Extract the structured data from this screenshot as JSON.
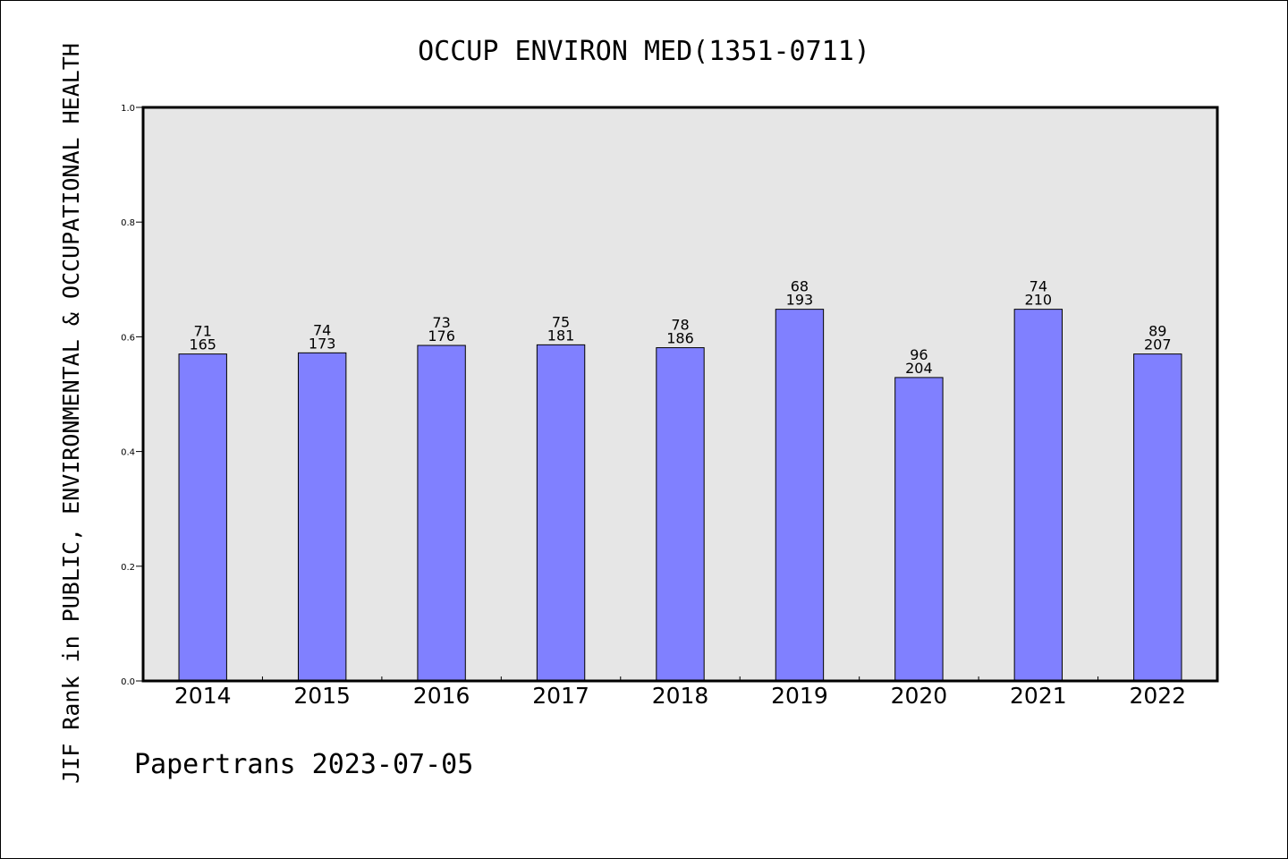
{
  "chart_data": {
    "type": "bar",
    "title": "OCCUP ENVIRON MED(1351-0711)",
    "xlabel": "",
    "ylabel": "JIF Rank in PUBLIC, ENVIRONMENTAL & OCCUPATIONAL HEALTH",
    "ylim": [
      0.0,
      1.0
    ],
    "yticks": [
      "0.0",
      "0.2",
      "0.4",
      "0.6",
      "0.8",
      "1.0"
    ],
    "categories": [
      "2014",
      "2015",
      "2016",
      "2017",
      "2018",
      "2019",
      "2020",
      "2021",
      "2022"
    ],
    "values": [
      0.57,
      0.572,
      0.585,
      0.586,
      0.581,
      0.648,
      0.529,
      0.648,
      0.57
    ],
    "rank": [
      "71",
      "74",
      "73",
      "75",
      "78",
      "68",
      "96",
      "74",
      "89"
    ],
    "total": [
      "165",
      "173",
      "176",
      "181",
      "186",
      "193",
      "204",
      "210",
      "207"
    ],
    "colors": {
      "bar": "#8080ff",
      "plot_background": "#e6e6e6"
    },
    "grid": false,
    "legend": "none"
  },
  "footer": "Papertrans 2023-07-05"
}
